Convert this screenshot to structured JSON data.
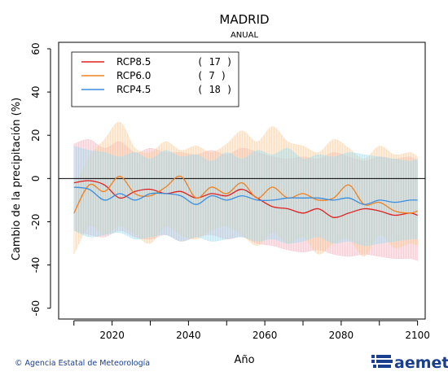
{
  "chart_data": {
    "type": "area",
    "title": "MADRID",
    "subtitle": "ANUAL",
    "xlabel": "Año",
    "ylabel": "Cambio de la precipitación (%)",
    "xlim": [
      2006,
      2102
    ],
    "ylim": [
      -65,
      63
    ],
    "xticks": [
      2020,
      2040,
      2060,
      2080,
      2100
    ],
    "yticks": [
      -60,
      -40,
      -20,
      0,
      20,
      40,
      60
    ],
    "zero_line": 0,
    "legend_position": "top-left",
    "series": [
      {
        "name": "RCP8.5",
        "count_label": "( 17 )",
        "color": "#e02020",
        "fill": "#f4b8c4",
        "x": [
          2010,
          2014,
          2018,
          2022,
          2026,
          2030,
          2034,
          2038,
          2042,
          2046,
          2050,
          2054,
          2058,
          2062,
          2066,
          2070,
          2074,
          2078,
          2082,
          2086,
          2090,
          2094,
          2098,
          2100
        ],
        "mean": [
          -2,
          -1,
          -3,
          -9,
          -6,
          -5,
          -7,
          -6,
          -9,
          -7,
          -8,
          -5,
          -9,
          -13,
          -14,
          -16,
          -14,
          -18,
          -16,
          -14,
          -15,
          -17,
          -16,
          -17
        ],
        "upper": [
          16,
          18,
          14,
          17,
          12,
          14,
          12,
          12,
          11,
          13,
          11,
          14,
          12,
          10,
          9,
          10,
          9,
          12,
          10,
          8,
          10,
          9,
          10,
          8
        ],
        "lower": [
          -24,
          -26,
          -27,
          -24,
          -27,
          -28,
          -26,
          -29,
          -27,
          -26,
          -28,
          -27,
          -30,
          -31,
          -33,
          -34,
          -33,
          -35,
          -36,
          -35,
          -36,
          -37,
          -37,
          -38
        ]
      },
      {
        "name": "RCP6.0",
        "count_label": "(   7 )",
        "color": "#f08020",
        "fill": "#fbd3a6",
        "x": [
          2010,
          2014,
          2018,
          2022,
          2026,
          2030,
          2034,
          2038,
          2042,
          2046,
          2050,
          2054,
          2058,
          2062,
          2066,
          2070,
          2074,
          2078,
          2082,
          2086,
          2090,
          2094,
          2098,
          2100
        ],
        "mean": [
          -16,
          -3,
          -6,
          1,
          -7,
          -8,
          -4,
          1,
          -9,
          -4,
          -7,
          -2,
          -9,
          -4,
          -9,
          -7,
          -10,
          -9,
          -3,
          -12,
          -11,
          -15,
          -16,
          -15
        ],
        "upper": [
          -5,
          10,
          18,
          26,
          14,
          12,
          17,
          13,
          15,
          12,
          16,
          22,
          17,
          24,
          17,
          15,
          12,
          18,
          14,
          9,
          15,
          11,
          12,
          10
        ],
        "lower": [
          -35,
          -22,
          -26,
          -22,
          -26,
          -30,
          -22,
          -26,
          -28,
          -24,
          -22,
          -26,
          -31,
          -25,
          -30,
          -27,
          -35,
          -30,
          -28,
          -36,
          -26,
          -32,
          -30,
          -31
        ]
      },
      {
        "name": "RCP4.5",
        "count_label": "( 18 )",
        "color": "#3a8ee0",
        "fill": "#a8dff0",
        "x": [
          2010,
          2014,
          2018,
          2022,
          2026,
          2030,
          2034,
          2038,
          2042,
          2046,
          2050,
          2054,
          2058,
          2062,
          2066,
          2070,
          2074,
          2078,
          2082,
          2086,
          2090,
          2094,
          2098,
          2100
        ],
        "mean": [
          -4,
          -5,
          -10,
          -7,
          -10,
          -7,
          -7,
          -8,
          -12,
          -8,
          -10,
          -8,
          -10,
          -10,
          -9,
          -9,
          -9,
          -10,
          -9,
          -12,
          -10,
          -11,
          -10,
          -10
        ],
        "upper": [
          15,
          13,
          12,
          10,
          12,
          9,
          13,
          10,
          11,
          8,
          12,
          9,
          13,
          11,
          14,
          9,
          11,
          10,
          12,
          11,
          10,
          9,
          8,
          9
        ],
        "lower": [
          -24,
          -27,
          -26,
          -25,
          -28,
          -27,
          -26,
          -29,
          -27,
          -29,
          -28,
          -27,
          -29,
          -28,
          -30,
          -29,
          -27,
          -30,
          -29,
          -31,
          -30,
          -29,
          -28,
          -28
        ]
      }
    ]
  },
  "footer": {
    "credit": "© Agencia Estatal de Meteorología",
    "logo_text": "aemet"
  },
  "colors": {
    "axis": "#000000",
    "brand": "#1a3f8f"
  }
}
